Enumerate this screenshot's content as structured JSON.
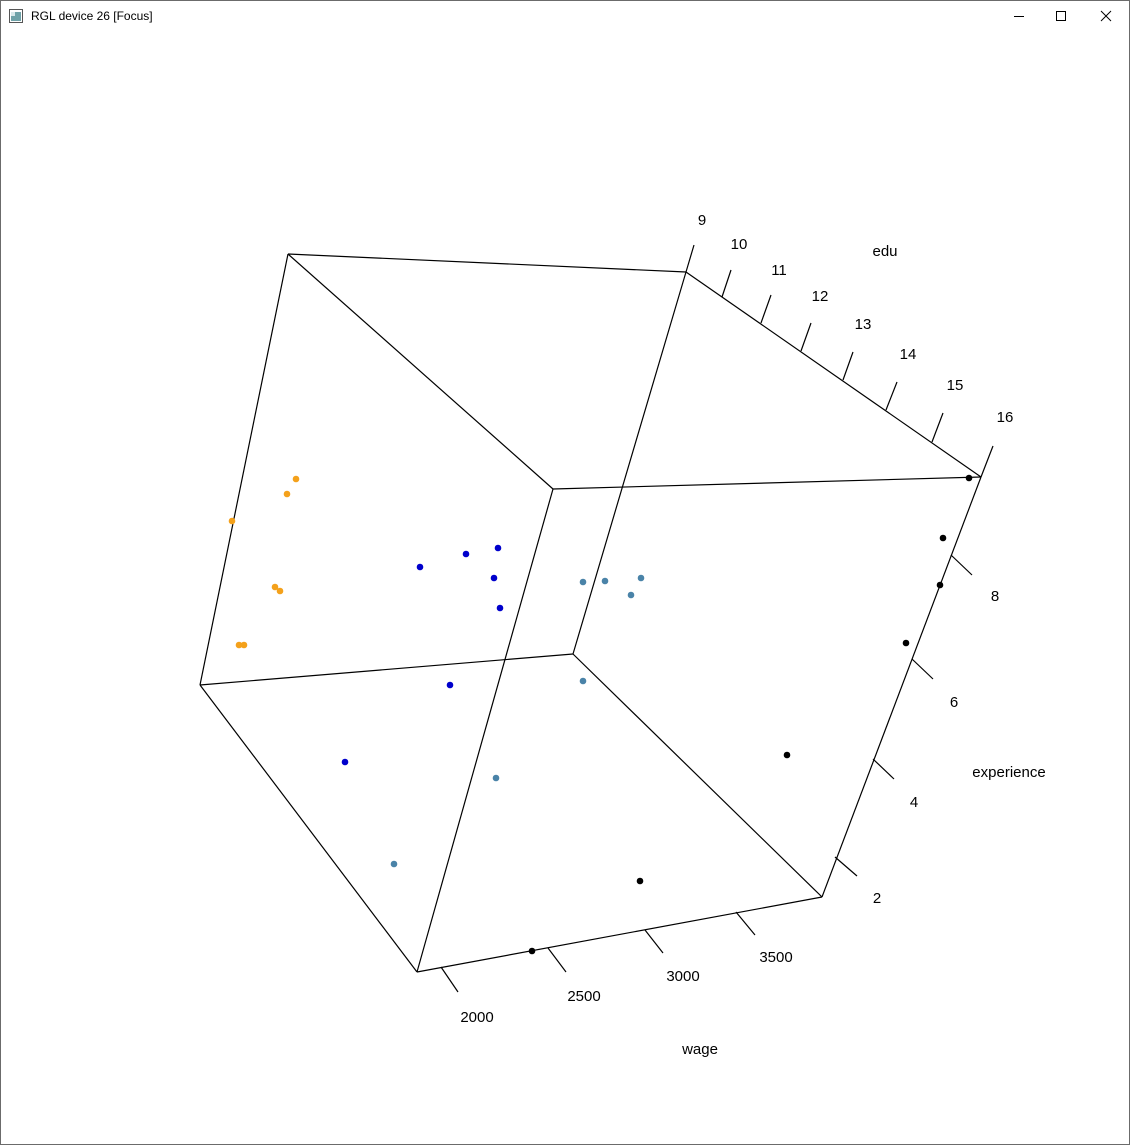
{
  "window": {
    "title": "RGL device 26 [Focus]",
    "controls": {
      "minimize": "minimize",
      "maximize": "maximize",
      "close": "close"
    }
  },
  "plot": {
    "axes": {
      "wage": {
        "label": "wage",
        "ticks": [
          "2000",
          "2500",
          "3000",
          "3500"
        ]
      },
      "experience": {
        "label": "experience",
        "ticks": [
          "2",
          "4",
          "6",
          "8"
        ]
      },
      "edu": {
        "label": "edu",
        "ticks": [
          "9",
          "10",
          "11",
          "12",
          "13",
          "14",
          "15",
          "16"
        ]
      }
    },
    "colors": {
      "box": "#000000",
      "group_orange": "#f4a11b",
      "group_blue": "#0000cc",
      "group_steelblue": "#4a83a8",
      "group_black": "#000000"
    }
  }
}
